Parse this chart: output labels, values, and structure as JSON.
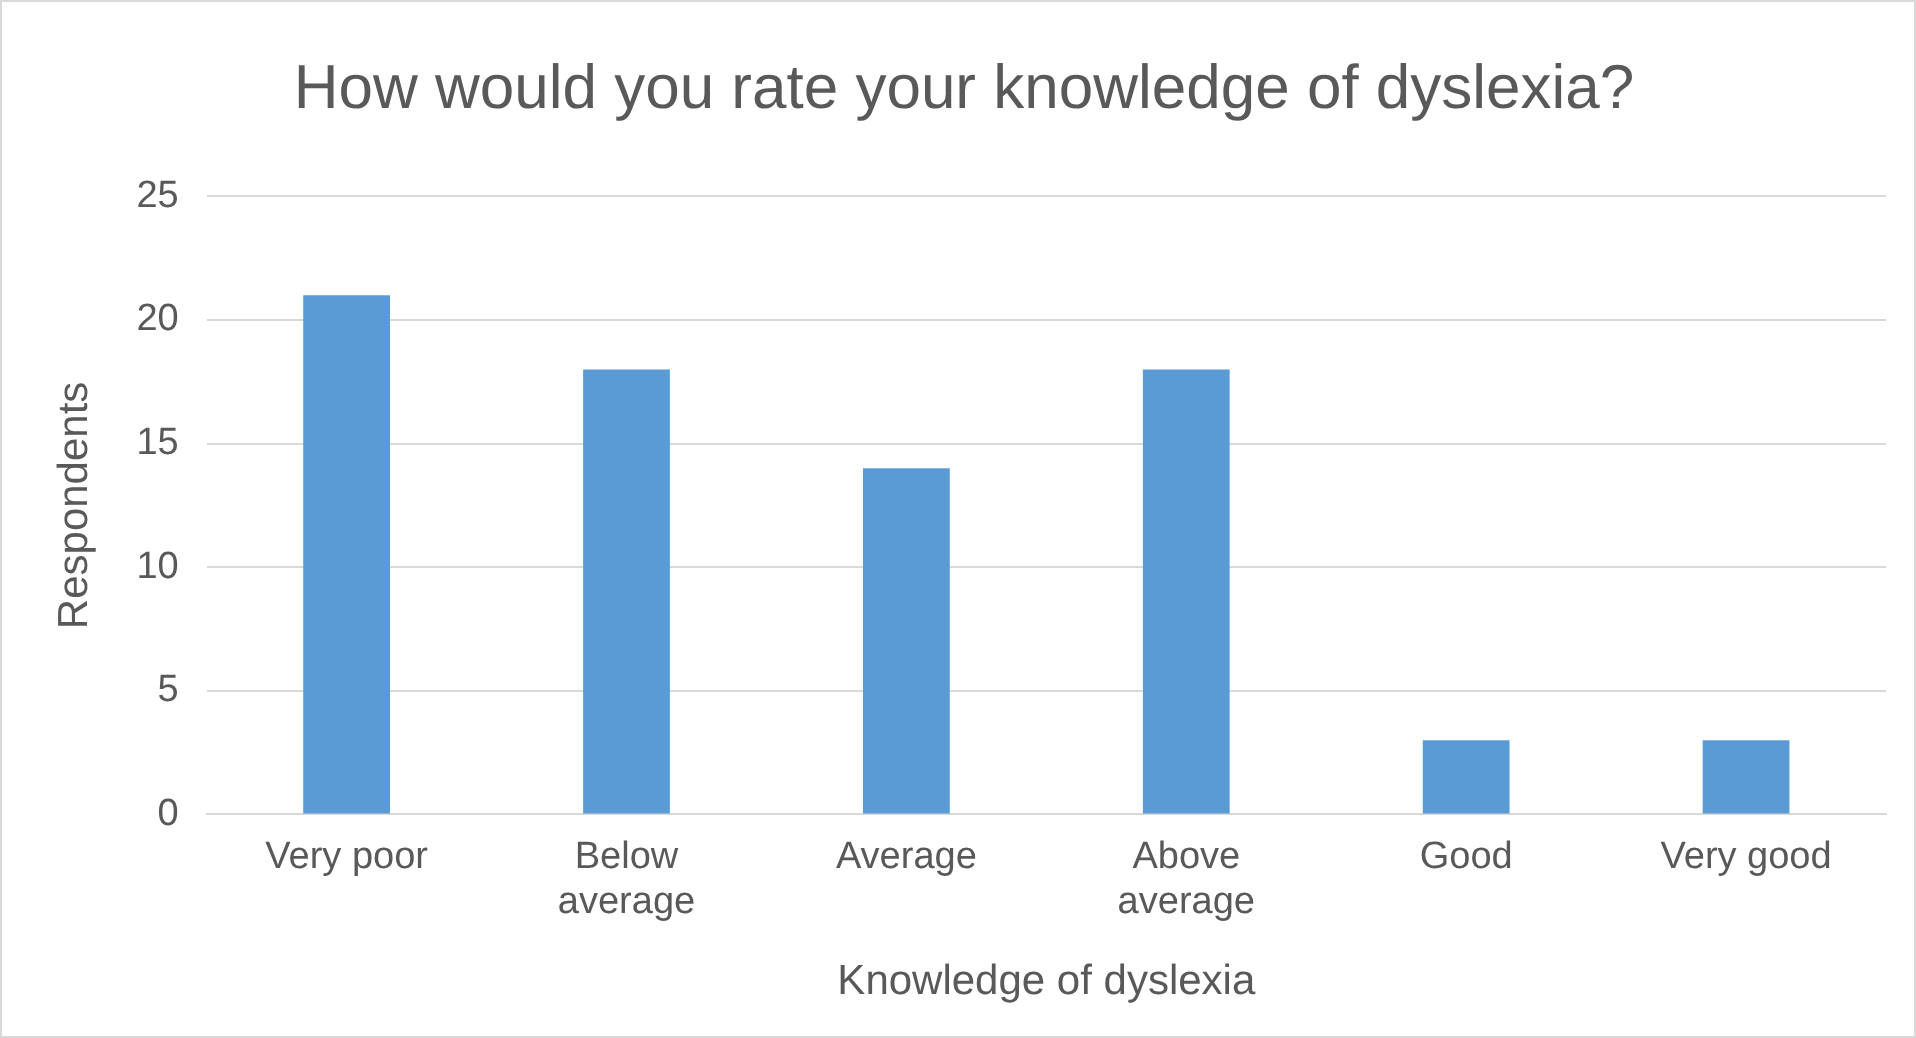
{
  "chart_data": {
    "type": "bar",
    "title": "How would you rate your knowledge of dyslexia?",
    "xlabel": "Knowledge of dyslexia",
    "ylabel": "Respondents",
    "categories": [
      "Very poor",
      "Below average",
      "Average",
      "Above average",
      "Good",
      "Very good"
    ],
    "values": [
      21,
      18,
      14,
      18,
      3,
      3
    ],
    "color": "#5b9bd5",
    "ylim": [
      0,
      25
    ],
    "yticks": [
      0,
      5,
      10,
      15,
      20,
      25
    ],
    "grid": "y",
    "legend": false
  }
}
